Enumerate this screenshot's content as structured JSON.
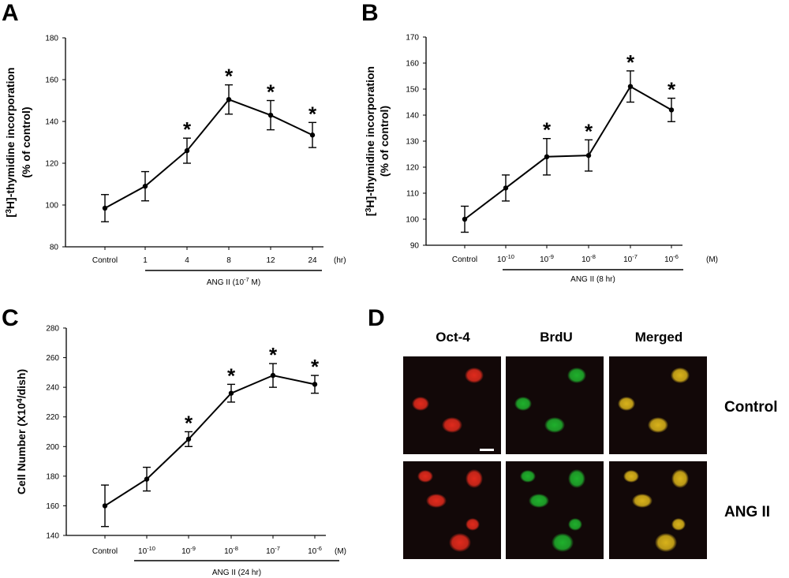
{
  "chart_data": [
    {
      "panel": "A",
      "type": "line",
      "ylabel_parts": [
        "[",
        "3",
        "H]-thymidine incorporation"
      ],
      "ylabel2": "(% of control)",
      "ylim": [
        80,
        180
      ],
      "yticks": [
        80,
        100,
        120,
        140,
        160,
        180
      ],
      "categories": [
        "Control",
        "1",
        "4",
        "8",
        "12",
        "24"
      ],
      "unit": "(hr)",
      "values": [
        98.5,
        109,
        126,
        150.5,
        143,
        133.5
      ],
      "errors": [
        6.5,
        7,
        6,
        7,
        7,
        6
      ],
      "significant": [
        false,
        false,
        true,
        true,
        true,
        true
      ],
      "treatment": {
        "pre": "ANG II (10",
        "sup": "-7",
        "post": " M)"
      }
    },
    {
      "panel": "B",
      "type": "line",
      "ylabel_parts": [
        "[",
        "3",
        "H]-thymidine incorporation"
      ],
      "ylabel2": "(% of control)",
      "ylim": [
        90,
        170
      ],
      "yticks": [
        90,
        100,
        110,
        120,
        130,
        140,
        150,
        160,
        170
      ],
      "categories": [
        {
          "base": "Control",
          "sup": ""
        },
        {
          "base": "10",
          "sup": "-10"
        },
        {
          "base": "10",
          "sup": "-9"
        },
        {
          "base": "10",
          "sup": "-8"
        },
        {
          "base": "10",
          "sup": "-7"
        },
        {
          "base": "10",
          "sup": "-6"
        }
      ],
      "unit": "(M)",
      "values": [
        100,
        112,
        124,
        124.5,
        151,
        142
      ],
      "errors": [
        5,
        5,
        7,
        6,
        6,
        4.5
      ],
      "significant": [
        false,
        false,
        true,
        true,
        true,
        true
      ],
      "treatment": {
        "pre": "ANG II (8 hr)",
        "sup": "",
        "post": ""
      }
    },
    {
      "panel": "C",
      "type": "line",
      "ylabel_parts": [
        "Cell Number (X10",
        "4",
        "/dish)"
      ],
      "ylabel2": "",
      "ylim": [
        140,
        280
      ],
      "yticks": [
        140,
        160,
        180,
        200,
        220,
        240,
        260,
        280
      ],
      "categories": [
        {
          "base": "Control",
          "sup": ""
        },
        {
          "base": "10",
          "sup": "-10"
        },
        {
          "base": "10",
          "sup": "-9"
        },
        {
          "base": "10",
          "sup": "-8"
        },
        {
          "base": "10",
          "sup": "-7"
        },
        {
          "base": "10",
          "sup": "-6"
        }
      ],
      "unit": "(M)",
      "values": [
        160,
        178,
        205,
        236,
        248,
        242
      ],
      "errors": [
        14,
        8,
        5,
        6,
        8,
        6
      ],
      "significant": [
        false,
        false,
        true,
        true,
        true,
        true
      ],
      "treatment": {
        "pre": "ANG II (24 hr)",
        "sup": "",
        "post": ""
      }
    }
  ],
  "micrographs": {
    "panel": "D",
    "columns": [
      "Oct-4",
      "BrdU",
      "Merged"
    ],
    "rows": [
      "Control",
      "ANG II"
    ],
    "colors": {
      "oct4": "#e02a1c",
      "brdu": "#1fb02c",
      "merged": "#d8b21a",
      "background": "#120808"
    }
  },
  "star_symbol": "*"
}
